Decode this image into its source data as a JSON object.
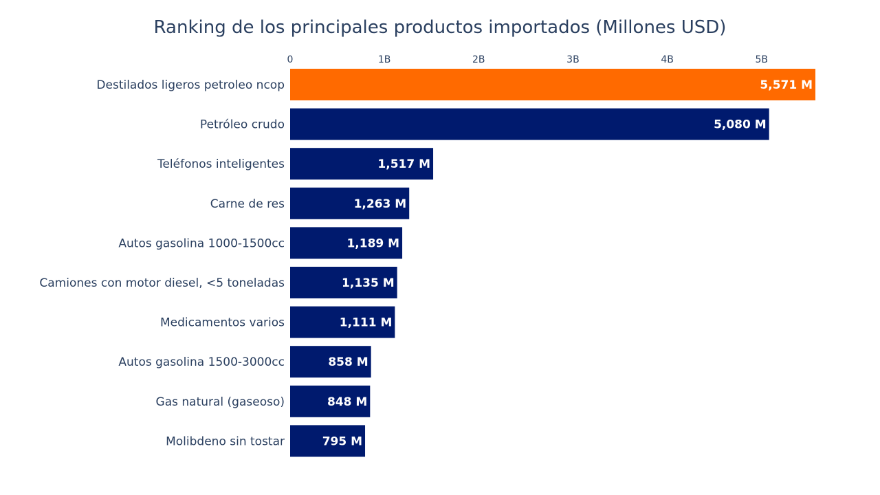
{
  "chart_data": {
    "type": "bar",
    "orientation": "horizontal",
    "title": "Ranking de los principales productos importados (Millones USD)",
    "xaxis_side": "top",
    "xlim": [
      0,
      5.6
    ],
    "xticks": [
      {
        "value": 0,
        "label": "0"
      },
      {
        "value": 1,
        "label": "1B"
      },
      {
        "value": 2,
        "label": "2B"
      },
      {
        "value": 3,
        "label": "3B"
      },
      {
        "value": 4,
        "label": "4B"
      },
      {
        "value": 5,
        "label": "5B"
      }
    ],
    "categories": [
      "Destilados ligeros petroleo ncop",
      "Petróleo crudo",
      "Teléfonos inteligentes",
      "Carne de res",
      "Autos gasolina 1000-1500cc",
      "Camiones con motor diesel, <5 toneladas",
      "Medicamentos varios",
      "Autos gasolina 1500-3000cc",
      "Gas natural (gaseoso)",
      "Molibdeno sin tostar"
    ],
    "values": [
      5571,
      5080,
      1517,
      1263,
      1189,
      1135,
      1111,
      858,
      848,
      795
    ],
    "value_labels": [
      "5,571 M",
      "5,080 M",
      "1,517 M",
      "1,263 M",
      "1,189 M",
      "1,135 M",
      "1,111 M",
      "858 M",
      "848 M",
      "795 M"
    ],
    "colors": [
      "#ff6a00",
      "#001a6e",
      "#001a6e",
      "#001a6e",
      "#001a6e",
      "#001a6e",
      "#001a6e",
      "#001a6e",
      "#001a6e",
      "#001a6e"
    ],
    "grid": false,
    "legend": "none"
  }
}
